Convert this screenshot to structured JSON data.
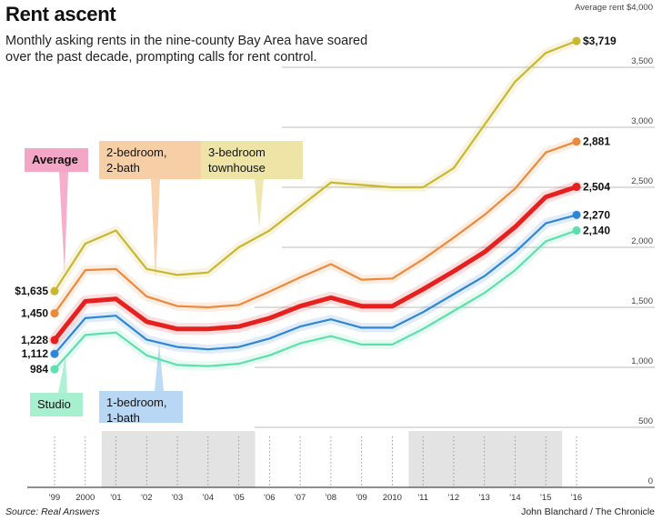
{
  "chart_data": {
    "type": "line",
    "title": "Rent ascent",
    "subtitle": "Monthly asking rents in the nine-county Bay Area have soared over the past decade, prompting calls for rent control.",
    "ylabel": "Average rent $4,000",
    "ylim": [
      0,
      4000
    ],
    "y_ticks": [
      {
        "value": 500,
        "label": "500"
      },
      {
        "value": 1000,
        "label": "1,000"
      },
      {
        "value": 1500,
        "label": "1,500"
      },
      {
        "value": 2000,
        "label": "2,000"
      },
      {
        "value": 2500,
        "label": "2,500"
      },
      {
        "value": 3000,
        "label": "3,000"
      },
      {
        "value": 3500,
        "label": "3,500"
      },
      {
        "value": 0,
        "label": "0"
      }
    ],
    "x": [
      1999,
      2000,
      2001,
      2002,
      2003,
      2004,
      2005,
      2006,
      2007,
      2008,
      2009,
      2010,
      2011,
      2012,
      2013,
      2014,
      2015,
      2016
    ],
    "x_labels": [
      "'99",
      "2000",
      "'01",
      "'02",
      "'03",
      "'04",
      "'05",
      "'06",
      "'07",
      "'08",
      "'09",
      "2010",
      "'11",
      "'12",
      "'13",
      "'14",
      "'15",
      "'16"
    ],
    "recession_bands": [
      [
        2000,
        2005
      ],
      [
        2010,
        2015
      ]
    ],
    "series": [
      {
        "name": "3-bedroom townhouse",
        "color": "#c9b732",
        "width": 2.2,
        "values": [
          1635,
          2030,
          2140,
          1820,
          1770,
          1790,
          2000,
          2140,
          2340,
          2540,
          2520,
          2500,
          2500,
          2660,
          3020,
          3380,
          3620,
          3719
        ],
        "start_label": "$1,635",
        "end_label": "$3,719"
      },
      {
        "name": "2-bedroom, 2-bath",
        "color": "#ec8a3c",
        "width": 2.2,
        "values": [
          1450,
          1810,
          1820,
          1590,
          1510,
          1500,
          1520,
          1630,
          1750,
          1860,
          1730,
          1740,
          1900,
          2080,
          2270,
          2490,
          2790,
          2881
        ],
        "start_label": "1,450",
        "end_label": "2,881"
      },
      {
        "name": "Average",
        "color": "#e5201f",
        "width": 5,
        "values": [
          1228,
          1550,
          1570,
          1380,
          1320,
          1320,
          1340,
          1410,
          1510,
          1580,
          1510,
          1510,
          1650,
          1800,
          1960,
          2170,
          2420,
          2504
        ],
        "start_label": "1,228",
        "end_label": "2,504"
      },
      {
        "name": "1-bedroom, 1-bath",
        "color": "#2f86d6",
        "width": 2.2,
        "values": [
          1112,
          1410,
          1430,
          1230,
          1170,
          1150,
          1170,
          1240,
          1340,
          1400,
          1330,
          1330,
          1460,
          1610,
          1760,
          1960,
          2200,
          2270
        ],
        "start_label": "1,112",
        "end_label": "2,270"
      },
      {
        "name": "Studio",
        "color": "#5ee0ad",
        "width": 2.2,
        "values": [
          984,
          1270,
          1290,
          1100,
          1020,
          1010,
          1030,
          1100,
          1200,
          1260,
          1190,
          1190,
          1320,
          1470,
          1620,
          1810,
          2050,
          2140
        ],
        "start_label": "984",
        "end_label": "2,140"
      }
    ],
    "callouts": [
      {
        "name": "average",
        "lines": [
          "Average"
        ],
        "bg": "#f4a6c6",
        "bold": true
      },
      {
        "name": "two-bed",
        "lines": [
          "2-bedroom,",
          "2-bath"
        ],
        "bg": "#f7cfa7",
        "bold": false
      },
      {
        "name": "three-bed",
        "lines": [
          "3-bedroom",
          "townhouse"
        ],
        "bg": "#eee4a5",
        "bold": false
      },
      {
        "name": "one-bed",
        "lines": [
          "1-bedroom,",
          "1-bath"
        ],
        "bg": "#b7d7f4",
        "bold": false
      },
      {
        "name": "studio",
        "lines": [
          "Studio"
        ],
        "bg": "#a6f0cf",
        "bold": false
      }
    ],
    "source": "Source: Real Answers",
    "credit": "John Blanchard / The Chronicle"
  }
}
